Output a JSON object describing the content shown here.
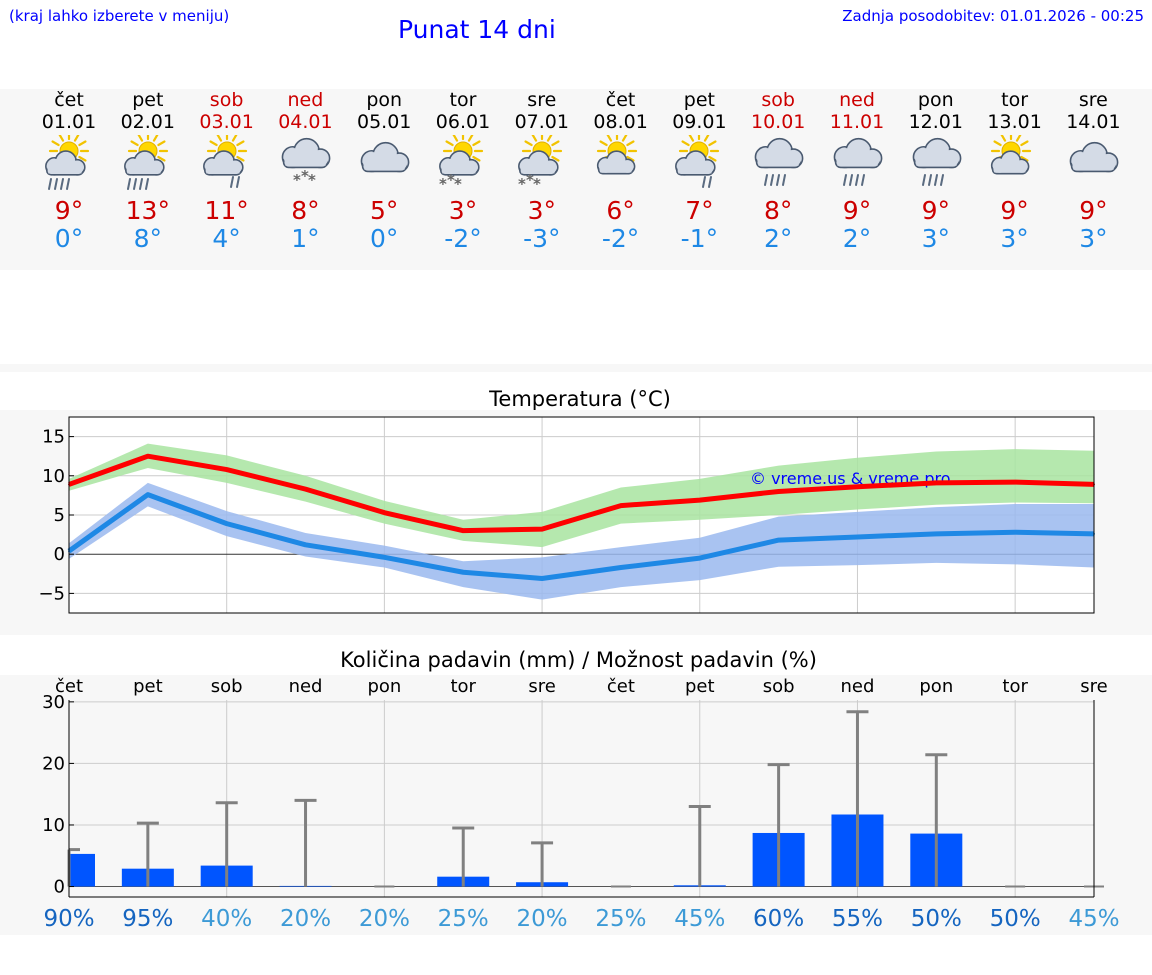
{
  "header": {
    "region_hint": "(kraj lahko izberete v meniju)",
    "title": "Punat 14 dni",
    "last_update": "Zadnja posodobitev: 01.01.2026 - 00:25"
  },
  "days": [
    {
      "name": "čet",
      "date": "01.01",
      "weekend": false,
      "icon": "sun-cloud-rain-icon",
      "tmax": "9°",
      "tmin": "0°"
    },
    {
      "name": "pet",
      "date": "02.01",
      "weekend": false,
      "icon": "sun-cloud-rain-icon",
      "tmax": "13°",
      "tmin": "8°"
    },
    {
      "name": "sob",
      "date": "03.01",
      "weekend": true,
      "icon": "sun-cloud-light-rain-icon",
      "tmax": "11°",
      "tmin": "4°"
    },
    {
      "name": "ned",
      "date": "04.01",
      "weekend": true,
      "icon": "cloud-snow-icon",
      "tmax": "8°",
      "tmin": "1°"
    },
    {
      "name": "pon",
      "date": "05.01",
      "weekend": false,
      "icon": "cloudy-icon",
      "tmax": "5°",
      "tmin": "0°"
    },
    {
      "name": "tor",
      "date": "06.01",
      "weekend": false,
      "icon": "sun-cloud-snow-icon",
      "tmax": "3°",
      "tmin": "-2°"
    },
    {
      "name": "sre",
      "date": "07.01",
      "weekend": false,
      "icon": "sun-cloud-snow-icon",
      "tmax": "3°",
      "tmin": "-3°"
    },
    {
      "name": "čet",
      "date": "08.01",
      "weekend": false,
      "icon": "sun-cloud-icon",
      "tmax": "6°",
      "tmin": "-2°"
    },
    {
      "name": "pet",
      "date": "09.01",
      "weekend": false,
      "icon": "sun-cloud-light-rain-icon",
      "tmax": "7°",
      "tmin": "-1°"
    },
    {
      "name": "sob",
      "date": "10.01",
      "weekend": true,
      "icon": "cloud-rain-icon",
      "tmax": "8°",
      "tmin": "2°"
    },
    {
      "name": "ned",
      "date": "11.01",
      "weekend": true,
      "icon": "cloud-rain-icon",
      "tmax": "9°",
      "tmin": "2°"
    },
    {
      "name": "pon",
      "date": "12.01",
      "weekend": false,
      "icon": "cloud-rain-icon",
      "tmax": "9°",
      "tmin": "3°"
    },
    {
      "name": "tor",
      "date": "13.01",
      "weekend": false,
      "icon": "sun-cloud-icon",
      "tmax": "9°",
      "tmin": "3°"
    },
    {
      "name": "sre",
      "date": "14.01",
      "weekend": false,
      "icon": "cloudy-icon",
      "tmax": "9°",
      "tmin": "3°"
    }
  ],
  "colors": {
    "weekend": "#cc0000",
    "tmax_line": "#ff0000",
    "tmin_line": "#1e88e5",
    "tmax_band": "#a8e4a0",
    "tmin_band": "#9ab8ef",
    "precip_bar": "#0055ff",
    "error_bar": "#808080",
    "watermark": "#0000ff"
  },
  "chart_data": [
    {
      "type": "line",
      "title": "Temperatura (°C)",
      "watermark": "© vreme.us & vreme.pro",
      "x": [
        1,
        2,
        3,
        4,
        5,
        6,
        7,
        8,
        9,
        10,
        11,
        12,
        13,
        14
      ],
      "ylim": [
        -7.5,
        17.5
      ],
      "yticks": [
        15,
        10,
        5,
        0,
        -5
      ],
      "ytick_labels": [
        "15",
        "10",
        "5",
        "0",
        "−5"
      ],
      "series": [
        {
          "name": "max",
          "values": [
            8.9,
            12.5,
            10.8,
            8.3,
            5.3,
            3.0,
            3.2,
            6.2,
            6.9,
            8.0,
            8.6,
            9.1,
            9.2,
            8.9
          ],
          "band_upper": [
            9.6,
            14.1,
            12.6,
            10.0,
            6.8,
            4.4,
            5.4,
            8.5,
            9.6,
            11.3,
            12.3,
            13.1,
            13.4,
            13.2
          ],
          "band_lower": [
            8.1,
            11.0,
            9.1,
            6.7,
            3.9,
            1.7,
            0.9,
            3.9,
            4.4,
            5.0,
            5.7,
            6.3,
            6.6,
            6.5
          ]
        },
        {
          "name": "min",
          "values": [
            0.4,
            7.6,
            3.9,
            1.2,
            -0.4,
            -2.3,
            -3.1,
            -1.7,
            -0.5,
            1.8,
            2.2,
            2.6,
            2.8,
            2.6
          ],
          "band_upper": [
            1.4,
            9.1,
            5.5,
            2.7,
            1.1,
            -0.9,
            -0.4,
            0.9,
            2.1,
            4.8,
            5.4,
            6.0,
            6.4,
            6.4
          ],
          "band_lower": [
            -0.6,
            6.1,
            2.3,
            -0.3,
            -1.7,
            -4.2,
            -5.8,
            -4.2,
            -3.3,
            -1.6,
            -1.4,
            -1.1,
            -1.3,
            -1.7
          ]
        }
      ]
    },
    {
      "type": "bar",
      "title": "Količina padavin (mm) / Možnost padavin (%)",
      "categories": [
        "čet",
        "pet",
        "sob",
        "ned",
        "pon",
        "tor",
        "sre",
        "čet",
        "pet",
        "sob",
        "ned",
        "pon",
        "tor",
        "sre"
      ],
      "ylim": [
        -1.7,
        30.3
      ],
      "yticks": [
        30,
        20,
        10,
        0
      ],
      "values": [
        5.3,
        2.9,
        3.4,
        0.1,
        0.0,
        1.6,
        0.7,
        0.0,
        0.2,
        8.7,
        11.7,
        8.6,
        0.0,
        0.0
      ],
      "error_upper": [
        6.0,
        10.3,
        13.6,
        14.0,
        0.0,
        9.5,
        7.1,
        0.0,
        13.0,
        19.8,
        28.4,
        21.4,
        0.0,
        0.0
      ],
      "probability_labels": [
        "90%",
        "95%",
        "40%",
        "20%",
        "20%",
        "25%",
        "20%",
        "25%",
        "45%",
        "60%",
        "55%",
        "50%",
        "50%",
        "45%"
      ],
      "probability_colors": [
        "#1565c0",
        "#1565c0",
        "#3d9ad6",
        "#3d9ad6",
        "#3d9ad6",
        "#3d9ad6",
        "#3d9ad6",
        "#3d9ad6",
        "#3d9ad6",
        "#1565c0",
        "#1565c0",
        "#1565c0",
        "#1565c0",
        "#3d9ad6"
      ]
    }
  ]
}
